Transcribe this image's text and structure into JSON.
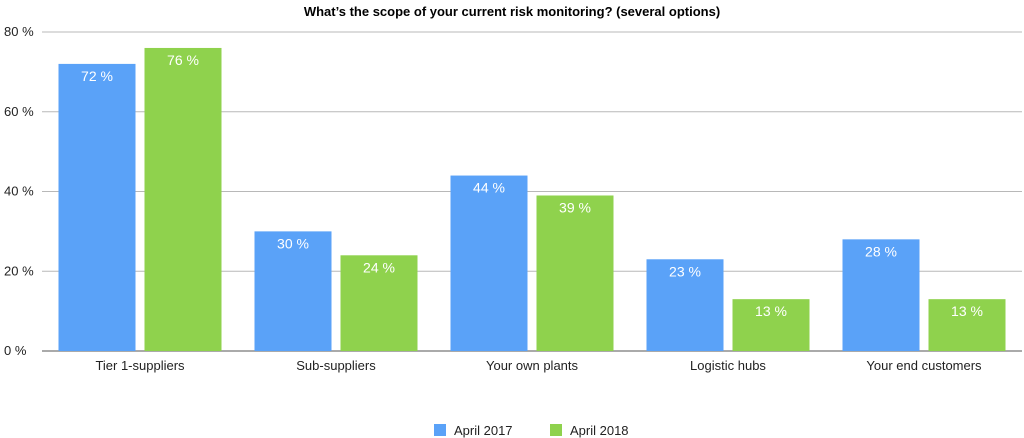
{
  "chart_data": {
    "type": "bar",
    "title": "What’s the scope of your current risk monitoring? (several options)",
    "categories": [
      "Tier 1-suppliers",
      "Sub-suppliers",
      "Your own plants",
      "Logistic hubs",
      "Your end customers"
    ],
    "series": [
      {
        "name": "April 2017",
        "color": "#5aa2f8",
        "values": [
          72,
          30,
          44,
          23,
          28
        ]
      },
      {
        "name": "April 2018",
        "color": "#8fd24d",
        "values": [
          76,
          24,
          39,
          13,
          13
        ]
      }
    ],
    "value_suffix": " %",
    "ylim": [
      0,
      80
    ],
    "yticks": [
      0,
      20,
      40,
      60,
      80
    ],
    "ytick_labels": [
      "0 %",
      "20 %",
      "40 %",
      "60 %",
      "80 %"
    ],
    "grid": true,
    "legend_position": "bottom"
  }
}
